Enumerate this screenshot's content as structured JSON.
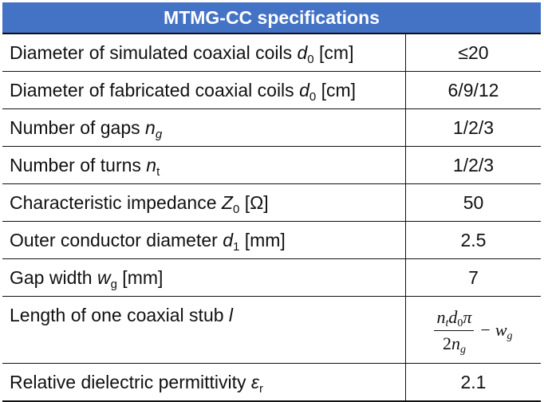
{
  "table": {
    "title": "MTMG-CC specifications",
    "rows": [
      {
        "label": "Diameter of simulated coaxial coils ",
        "symbol": "d",
        "sub": "0",
        "unit": " [cm]",
        "value": "≤20"
      },
      {
        "label": "Diameter of fabricated coaxial coils ",
        "symbol": "d",
        "sub": "0",
        "unit": " [cm]",
        "value": "6/9/12"
      },
      {
        "label": "Number of gaps ",
        "symbol": "n",
        "sub": "g",
        "unit": "",
        "value": "1/2/3"
      },
      {
        "label": "Number of turns ",
        "symbol": "n",
        "sub": "t",
        "unit": "",
        "value": "1/2/3"
      },
      {
        "label": "Characteristic impedance ",
        "symbol": "Z",
        "sub": "0",
        "unit": " [Ω]",
        "value": "50"
      },
      {
        "label": "Outer conductor diameter ",
        "symbol": "d",
        "sub": "1",
        "unit": " [mm]",
        "value": "2.5"
      },
      {
        "label": "Gap width ",
        "symbol": "w",
        "sub": "g",
        "unit": " [mm]",
        "value": "7"
      },
      {
        "label": "Length of one coaxial stub ",
        "symbol": "l",
        "sub": "",
        "unit": "",
        "formula": {
          "n": "n",
          "n_sub": "t",
          "d": "d",
          "d_sub": "0",
          "pi": "π",
          "den_coef": "2",
          "den_var": "n",
          "den_sub": "g",
          "minus": "−",
          "w": "w",
          "w_sub": "g"
        }
      },
      {
        "label": "Relative dielectric permittivity ",
        "symbol": "ε",
        "sub": "r",
        "unit": "",
        "value": "2.1"
      }
    ]
  }
}
